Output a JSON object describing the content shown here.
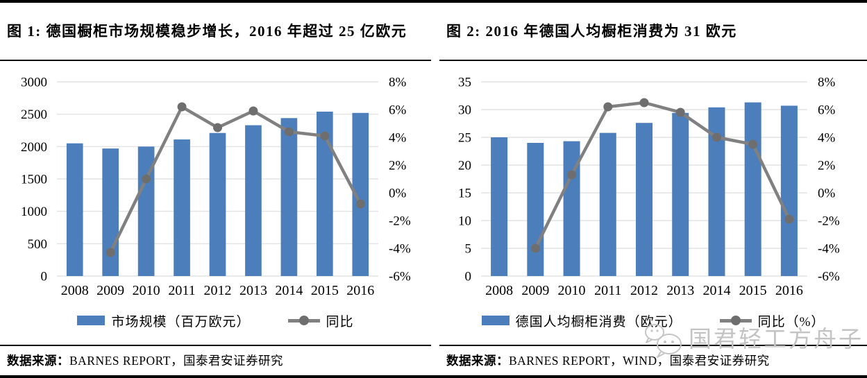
{
  "watermark": {
    "text": "国君轻工方舟子",
    "icon": "wechat-chat-bubbles"
  },
  "colors": {
    "bar_blue": "#4D7EBC",
    "line_gray": "#808080",
    "marker_gray": "#6E6E6E",
    "gridline": "#E4E4E4",
    "text": "#000000",
    "watermark_gray": "#C3C3C3",
    "border_black": "#000000"
  },
  "figures": [
    {
      "title": "图 1: 德国橱柜市场规模稳步增长，2016 年超过 25 亿欧元",
      "source_label": "数据来源：",
      "source_text": "BARNES REPORT，国泰君安证券研究"
    },
    {
      "title": "图 2: 2016 年德国人均橱柜消费为 31 欧元",
      "source_label": "数据来源：",
      "source_text": "BARNES REPORT，WIND，国泰君安证券研究"
    }
  ],
  "chart_data": [
    {
      "type": "bar",
      "subtype": "bar-plus-line-dual-axis",
      "title": "图 1: 德国橱柜市场规模稳步增长，2016 年超过 25 亿欧元",
      "categories": [
        "2008",
        "2009",
        "2010",
        "2011",
        "2012",
        "2013",
        "2014",
        "2015",
        "2016"
      ],
      "series": [
        {
          "name": "市场规模（百万欧元）",
          "type": "bar",
          "axis": "left",
          "values": [
            2050,
            1970,
            2000,
            2110,
            2210,
            2330,
            2440,
            2540,
            2520
          ]
        },
        {
          "name": "同比",
          "type": "line",
          "axis": "right",
          "values": [
            null,
            -4.3,
            1.0,
            6.2,
            4.7,
            5.9,
            4.4,
            4.1,
            -0.8
          ]
        }
      ],
      "left_axis": {
        "min": 0,
        "max": 3000,
        "ticks": [
          0,
          500,
          1000,
          1500,
          2000,
          2500,
          3000
        ]
      },
      "right_axis": {
        "min": -6,
        "max": 8,
        "ticks": [
          8,
          6,
          4,
          2,
          0,
          -2,
          -4,
          -6
        ],
        "tick_suffix": "%"
      },
      "grid": true,
      "legend_position": "bottom"
    },
    {
      "type": "bar",
      "subtype": "bar-plus-line-dual-axis",
      "title": "图 2: 2016 年德国人均橱柜消费为 31 欧元",
      "categories": [
        "2008",
        "2009",
        "2010",
        "2011",
        "2012",
        "2013",
        "2014",
        "2015",
        "2016"
      ],
      "series": [
        {
          "name": "德国人均橱柜消费（欧元）",
          "type": "bar",
          "axis": "left",
          "values": [
            25.0,
            24.0,
            24.3,
            25.8,
            27.6,
            29.4,
            30.4,
            31.3,
            30.7
          ]
        },
        {
          "name": "同比（%）",
          "type": "line",
          "axis": "right",
          "values": [
            null,
            -4.0,
            1.3,
            6.2,
            6.5,
            5.8,
            4.0,
            3.5,
            -1.9
          ]
        }
      ],
      "left_axis": {
        "min": 0,
        "max": 35,
        "ticks": [
          0,
          5,
          10,
          15,
          20,
          25,
          30,
          35
        ]
      },
      "right_axis": {
        "min": -6,
        "max": 8,
        "ticks": [
          8,
          6,
          4,
          2,
          0,
          -2,
          -4,
          -6
        ],
        "tick_suffix": "%"
      },
      "grid": true,
      "legend_position": "bottom"
    }
  ]
}
